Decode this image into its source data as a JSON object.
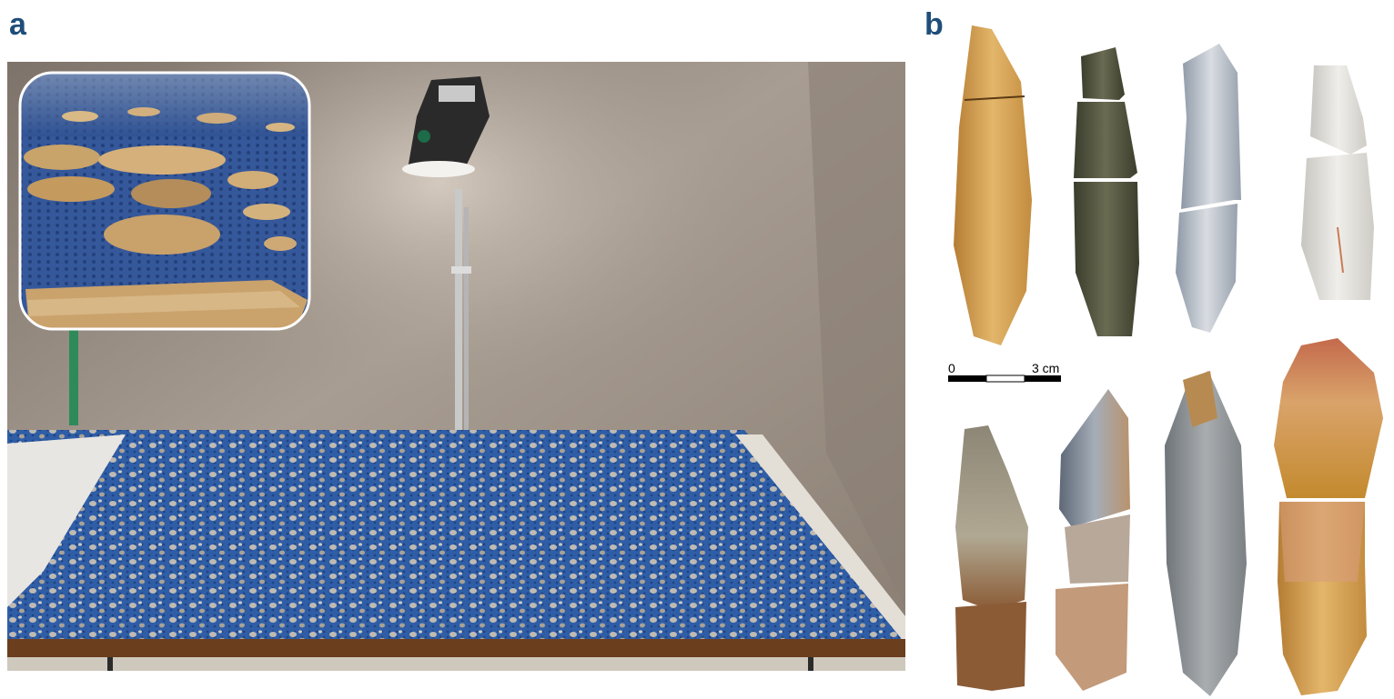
{
  "panels": [
    {
      "label": "a"
    },
    {
      "label": "b"
    }
  ],
  "scale_bar": {
    "start_label": "0",
    "end_label": "3 cm"
  },
  "colors": {
    "panel_label": "#1f4e79",
    "mat_blue": "#2e5fa8",
    "table_wood": "#6b3e1e",
    "wall": "#9a8e82"
  }
}
